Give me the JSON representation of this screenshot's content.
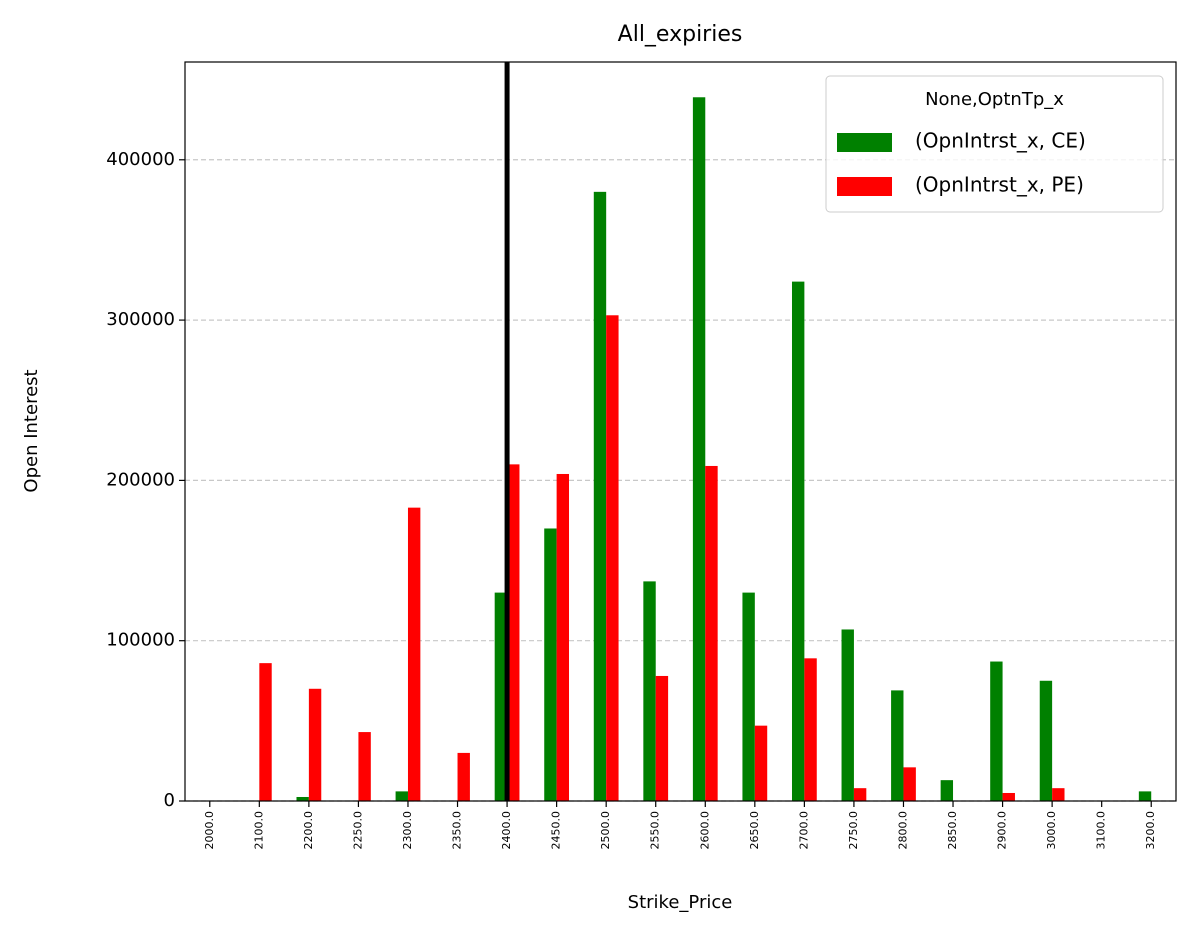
{
  "chart_data": {
    "type": "bar",
    "title": "All_expiries",
    "x_label": "Strike_Price",
    "y_label": "Open Interest",
    "categories": [
      "2000.0",
      "2100.0",
      "2200.0",
      "2250.0",
      "2300.0",
      "2350.0",
      "2400.0",
      "2450.0",
      "2500.0",
      "2550.0",
      "2600.0",
      "2650.0",
      "2700.0",
      "2750.0",
      "2800.0",
      "2850.0",
      "2900.0",
      "3000.0",
      "3100.0",
      "3200.0"
    ],
    "series": [
      {
        "name": "(OpnIntrst_x, CE)",
        "color": "#008000",
        "values": [
          0,
          0,
          2500,
          0,
          6000,
          0,
          130000,
          170000,
          380000,
          137000,
          439000,
          130000,
          324000,
          107000,
          69000,
          13000,
          87000,
          75000,
          0,
          6000
        ]
      },
      {
        "name": "(OpnIntrst_x, PE)",
        "color": "#ff0000",
        "values": [
          0,
          86000,
          70000,
          43000,
          183000,
          30000,
          210000,
          204000,
          303000,
          78000,
          209000,
          47000,
          89000,
          8000,
          21000,
          0,
          5000,
          8000,
          0,
          0
        ]
      }
    ],
    "legend_title": "None,OptnTp_x",
    "legend": "upper right",
    "ylim": [
      0,
      461000
    ],
    "yticks": [
      0,
      100000,
      200000,
      300000,
      400000
    ],
    "grid": true,
    "vline": {
      "category": "2400.0",
      "color": "#000000"
    }
  }
}
